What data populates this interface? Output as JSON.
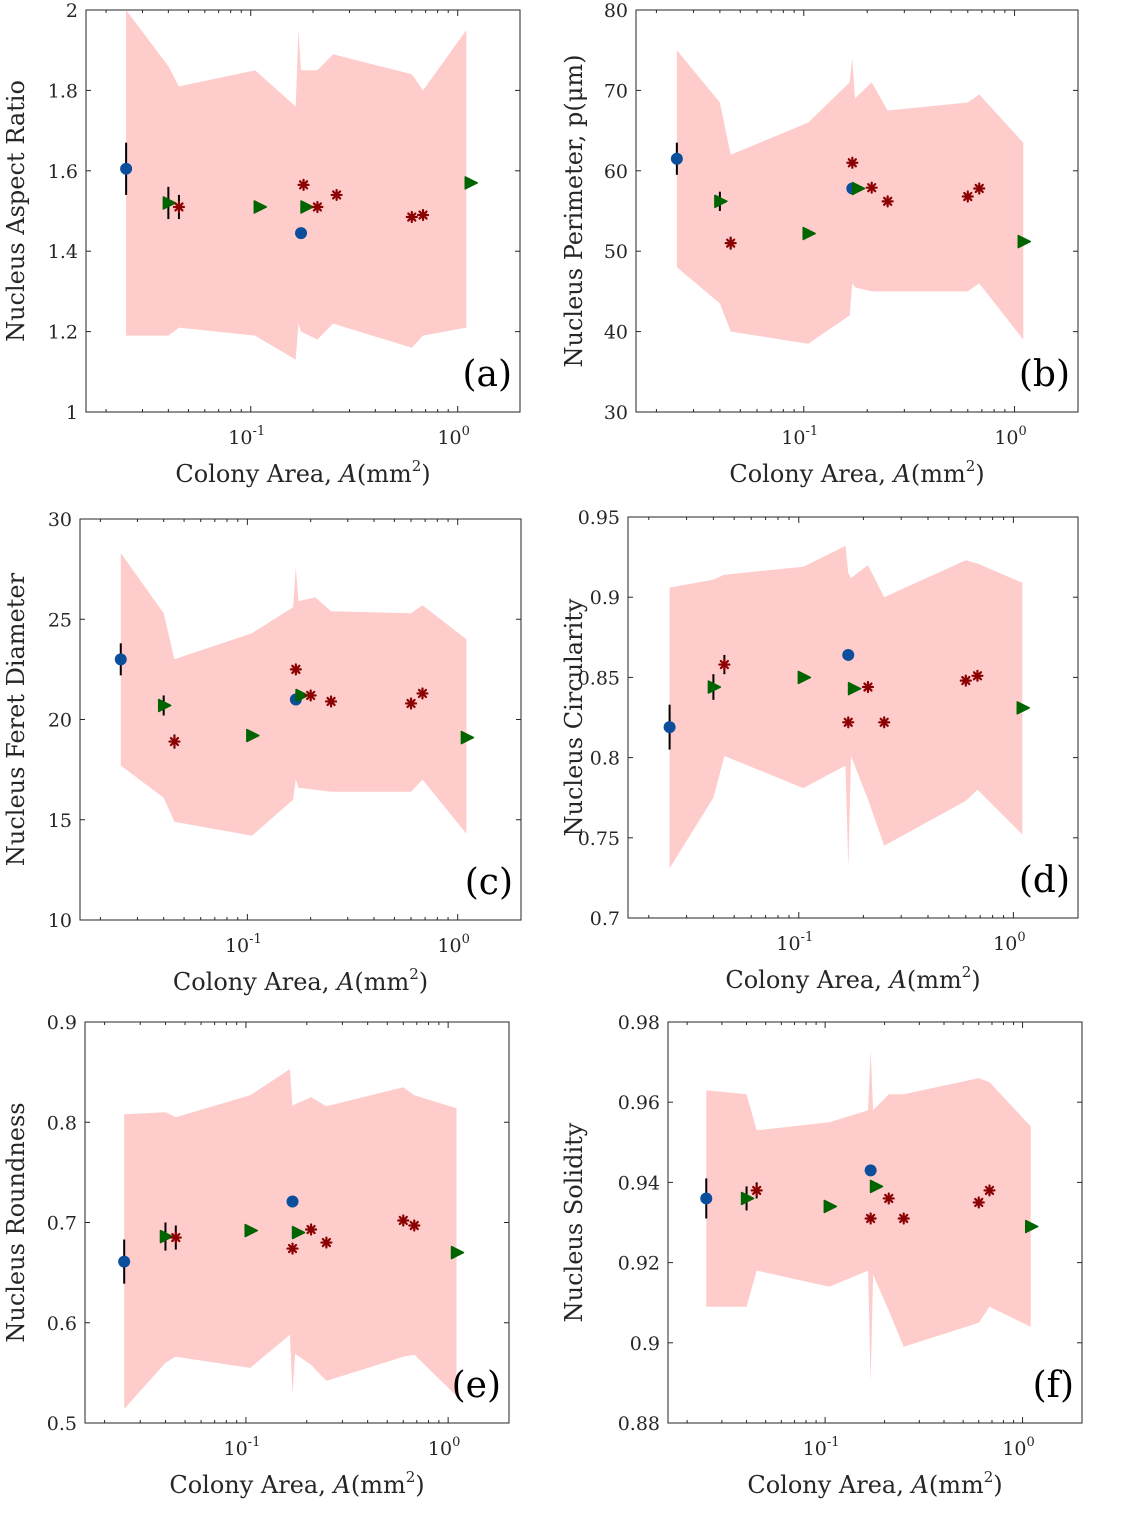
{
  "colors": {
    "band": "#ffcccc",
    "circle": "#0b4f9c",
    "triangle": "#006400",
    "star": "#8b0000",
    "errorbar": "#000000"
  },
  "chart_data": [
    {
      "type": "scatter",
      "panel_label": "(a)",
      "xlabel": {
        "prefix": "Colony Area, ",
        "var": "A",
        "unit": "(mm",
        "sup": "2",
        "end": ")"
      },
      "ylabel": "Nucleus Aspect Ratio",
      "xscale": "log",
      "xlim": [
        0.016,
        2.0
      ],
      "ylim": [
        1,
        2
      ],
      "xticks": [
        {
          "base": "10",
          "exp": "-1",
          "value": 0.1
        },
        {
          "base": "10",
          "exp": "0",
          "value": 1
        }
      ],
      "yticks": [
        "1",
        "1.2",
        "1.4",
        "1.6",
        "1.8",
        "2"
      ],
      "band": {
        "x": [
          0.025,
          0.04,
          0.045,
          0.105,
          0.165,
          0.17,
          0.175,
          0.21,
          0.25,
          0.6,
          0.68,
          1.1
        ],
        "upper": [
          2.0,
          1.86,
          1.81,
          1.85,
          1.76,
          1.95,
          1.85,
          1.85,
          1.89,
          1.84,
          1.8,
          1.95
        ],
        "lower": [
          1.19,
          1.19,
          1.21,
          1.19,
          1.13,
          1.22,
          1.2,
          1.18,
          1.22,
          1.16,
          1.19,
          1.21
        ]
      },
      "series": [
        {
          "marker": "circle",
          "points": [
            {
              "x": 0.025,
              "y": 1.605,
              "err": 0.065
            },
            {
              "x": 0.175,
              "y": 1.445
            }
          ]
        },
        {
          "marker": "triangle",
          "points": [
            {
              "x": 0.04,
              "y": 1.52,
              "err": 0.04
            },
            {
              "x": 0.11,
              "y": 1.51
            },
            {
              "x": 0.185,
              "y": 1.51
            },
            {
              "x": 1.15,
              "y": 1.57
            }
          ]
        },
        {
          "marker": "star",
          "points": [
            {
              "x": 0.045,
              "y": 1.51,
              "err": 0.03
            },
            {
              "x": 0.18,
              "y": 1.565
            },
            {
              "x": 0.21,
              "y": 1.51
            },
            {
              "x": 0.26,
              "y": 1.54
            },
            {
              "x": 0.6,
              "y": 1.485
            },
            {
              "x": 0.68,
              "y": 1.49
            }
          ]
        }
      ]
    },
    {
      "type": "scatter",
      "panel_label": "(b)",
      "xlabel": {
        "prefix": "Colony Area, ",
        "var": "A",
        "unit": "(mm",
        "sup": "2",
        "end": ")"
      },
      "ylabel": "Nucleus Perimeter, p(μm)",
      "xscale": "log",
      "xlim": [
        0.016,
        2.0
      ],
      "ylim": [
        30,
        80
      ],
      "xticks": [
        {
          "base": "10",
          "exp": "-1",
          "value": 0.1
        },
        {
          "base": "10",
          "exp": "0",
          "value": 1
        }
      ],
      "yticks": [
        "30",
        "40",
        "50",
        "60",
        "70",
        "80"
      ],
      "band": {
        "x": [
          0.025,
          0.04,
          0.045,
          0.105,
          0.165,
          0.17,
          0.175,
          0.21,
          0.25,
          0.6,
          0.68,
          1.1
        ],
        "upper": [
          75,
          68.5,
          62,
          66,
          71,
          74,
          69,
          71,
          67.5,
          68.5,
          69.5,
          63.5
        ],
        "lower": [
          48,
          43.5,
          40,
          38.5,
          42,
          46,
          45.5,
          45,
          45,
          45,
          46,
          39
        ]
      },
      "series": [
        {
          "marker": "circle",
          "points": [
            {
              "x": 0.025,
              "y": 61.5,
              "err": 2.0
            },
            {
              "x": 0.17,
              "y": 57.8
            }
          ]
        },
        {
          "marker": "triangle",
          "points": [
            {
              "x": 0.04,
              "y": 56.2,
              "err": 1.2
            },
            {
              "x": 0.105,
              "y": 52.2
            },
            {
              "x": 0.18,
              "y": 57.8
            },
            {
              "x": 1.1,
              "y": 51.2
            }
          ]
        },
        {
          "marker": "star",
          "points": [
            {
              "x": 0.045,
              "y": 51.0,
              "err": 0.8
            },
            {
              "x": 0.17,
              "y": 61.0
            },
            {
              "x": 0.21,
              "y": 57.9
            },
            {
              "x": 0.25,
              "y": 56.2
            },
            {
              "x": 0.6,
              "y": 56.8
            },
            {
              "x": 0.68,
              "y": 57.8
            }
          ]
        }
      ]
    },
    {
      "type": "scatter",
      "panel_label": "(c)",
      "xlabel": {
        "prefix": "Colony Area, ",
        "var": "A",
        "unit": "(mm",
        "sup": "2",
        "end": ")"
      },
      "ylabel": "Nucleus Feret Diameter",
      "xscale": "log",
      "xlim": [
        0.016,
        2.0
      ],
      "ylim": [
        10,
        30
      ],
      "xticks": [
        {
          "base": "10",
          "exp": "-1",
          "value": 0.1
        },
        {
          "base": "10",
          "exp": "0",
          "value": 1
        }
      ],
      "yticks": [
        "10",
        "15",
        "20",
        "25",
        "30"
      ],
      "band": {
        "x": [
          0.025,
          0.04,
          0.045,
          0.105,
          0.165,
          0.17,
          0.175,
          0.21,
          0.25,
          0.6,
          0.68,
          1.1
        ],
        "upper": [
          28.3,
          25.3,
          23.0,
          24.3,
          25.6,
          27.6,
          25.9,
          26.1,
          25.4,
          25.3,
          25.7,
          24.0
        ],
        "lower": [
          17.7,
          16.1,
          14.9,
          14.2,
          16.0,
          17.0,
          16.6,
          16.5,
          16.4,
          16.4,
          17.0,
          14.3
        ]
      },
      "series": [
        {
          "marker": "circle",
          "points": [
            {
              "x": 0.025,
              "y": 23.0,
              "err": 0.8
            },
            {
              "x": 0.17,
              "y": 21.0
            }
          ]
        },
        {
          "marker": "triangle",
          "points": [
            {
              "x": 0.04,
              "y": 20.7,
              "err": 0.5
            },
            {
              "x": 0.105,
              "y": 19.2
            },
            {
              "x": 0.18,
              "y": 21.2
            },
            {
              "x": 1.1,
              "y": 19.1
            }
          ]
        },
        {
          "marker": "star",
          "points": [
            {
              "x": 0.045,
              "y": 18.9,
              "err": 0.35
            },
            {
              "x": 0.17,
              "y": 22.5
            },
            {
              "x": 0.2,
              "y": 21.2
            },
            {
              "x": 0.25,
              "y": 20.9
            },
            {
              "x": 0.6,
              "y": 20.8
            },
            {
              "x": 0.68,
              "y": 21.3
            }
          ]
        }
      ]
    },
    {
      "type": "scatter",
      "panel_label": "(d)",
      "xlabel": {
        "prefix": "Colony Area, ",
        "var": "A",
        "unit": "(mm",
        "sup": "2",
        "end": ")"
      },
      "ylabel": "Nucleus Circularity",
      "xscale": "log",
      "xlim": [
        0.016,
        2.0
      ],
      "ylim": [
        0.7,
        0.95
      ],
      "xticks": [
        {
          "base": "10",
          "exp": "-1",
          "value": 0.1
        },
        {
          "base": "10",
          "exp": "0",
          "value": 1
        }
      ],
      "yticks": [
        "0.7",
        "0.75",
        "0.8",
        "0.85",
        "0.9",
        "0.95"
      ],
      "band": {
        "x": [
          0.025,
          0.04,
          0.045,
          0.105,
          0.165,
          0.17,
          0.175,
          0.21,
          0.25,
          0.6,
          0.68,
          1.1
        ],
        "upper": [
          0.906,
          0.911,
          0.914,
          0.919,
          0.932,
          0.915,
          0.912,
          0.92,
          0.9,
          0.923,
          0.921,
          0.909
        ],
        "lower": [
          0.731,
          0.775,
          0.801,
          0.781,
          0.795,
          0.731,
          0.801,
          0.774,
          0.745,
          0.773,
          0.78,
          0.752
        ]
      },
      "series": [
        {
          "marker": "circle",
          "points": [
            {
              "x": 0.025,
              "y": 0.819,
              "err": 0.014
            },
            {
              "x": 0.17,
              "y": 0.864
            }
          ]
        },
        {
          "marker": "triangle",
          "points": [
            {
              "x": 0.04,
              "y": 0.844,
              "err": 0.008
            },
            {
              "x": 0.105,
              "y": 0.85
            },
            {
              "x": 0.18,
              "y": 0.843
            },
            {
              "x": 1.1,
              "y": 0.831
            }
          ]
        },
        {
          "marker": "star",
          "points": [
            {
              "x": 0.045,
              "y": 0.858,
              "err": 0.006
            },
            {
              "x": 0.17,
              "y": 0.822
            },
            {
              "x": 0.21,
              "y": 0.844
            },
            {
              "x": 0.25,
              "y": 0.822
            },
            {
              "x": 0.6,
              "y": 0.848
            },
            {
              "x": 0.68,
              "y": 0.851
            }
          ]
        }
      ]
    },
    {
      "type": "scatter",
      "panel_label": "(e)",
      "xlabel": {
        "prefix": "Colony Area, ",
        "var": "A",
        "unit": "(mm",
        "sup": "2",
        "end": ")"
      },
      "ylabel": "Nucleus Roundness",
      "xscale": "log",
      "xlim": [
        0.016,
        2.0
      ],
      "ylim": [
        0.5,
        0.9
      ],
      "xticks": [
        {
          "base": "10",
          "exp": "-1",
          "value": 0.1
        },
        {
          "base": "10",
          "exp": "0",
          "value": 1
        }
      ],
      "yticks": [
        "0.5",
        "0.6",
        "0.7",
        "0.8",
        "0.9"
      ],
      "band": {
        "x": [
          0.025,
          0.04,
          0.045,
          0.105,
          0.165,
          0.17,
          0.175,
          0.21,
          0.25,
          0.6,
          0.68,
          1.1
        ],
        "upper": [
          0.808,
          0.81,
          0.805,
          0.827,
          0.853,
          0.816,
          0.818,
          0.825,
          0.816,
          0.835,
          0.827,
          0.814
        ],
        "lower": [
          0.514,
          0.56,
          0.566,
          0.555,
          0.588,
          0.529,
          0.569,
          0.558,
          0.542,
          0.566,
          0.568,
          0.527
        ]
      },
      "series": [
        {
          "marker": "circle",
          "points": [
            {
              "x": 0.025,
              "y": 0.661,
              "err": 0.022
            },
            {
              "x": 0.17,
              "y": 0.721
            }
          ]
        },
        {
          "marker": "triangle",
          "points": [
            {
              "x": 0.04,
              "y": 0.686,
              "err": 0.014
            },
            {
              "x": 0.105,
              "y": 0.692
            },
            {
              "x": 0.18,
              "y": 0.69
            },
            {
              "x": 1.1,
              "y": 0.67
            }
          ]
        },
        {
          "marker": "star",
          "points": [
            {
              "x": 0.045,
              "y": 0.685,
              "err": 0.012
            },
            {
              "x": 0.17,
              "y": 0.674
            },
            {
              "x": 0.21,
              "y": 0.693
            },
            {
              "x": 0.25,
              "y": 0.68
            },
            {
              "x": 0.6,
              "y": 0.702
            },
            {
              "x": 0.68,
              "y": 0.697
            }
          ]
        }
      ]
    },
    {
      "type": "scatter",
      "panel_label": "(f)",
      "xlabel": {
        "prefix": "Colony Area, ",
        "var": "A",
        "unit": "(mm",
        "sup": "2",
        "end": ")"
      },
      "ylabel": "Nucleus Solidity",
      "xscale": "log",
      "xlim": [
        0.016,
        2.0
      ],
      "ylim": [
        0.88,
        0.98
      ],
      "xticks": [
        {
          "base": "10",
          "exp": "-1",
          "value": 0.1
        },
        {
          "base": "10",
          "exp": "0",
          "value": 1
        }
      ],
      "yticks": [
        "0.88",
        "0.9",
        "0.92",
        "0.94",
        "0.96",
        "0.98"
      ],
      "band": {
        "x": [
          0.025,
          0.04,
          0.045,
          0.105,
          0.165,
          0.17,
          0.175,
          0.21,
          0.25,
          0.6,
          0.68,
          1.1
        ],
        "upper": [
          0.963,
          0.962,
          0.953,
          0.955,
          0.958,
          0.973,
          0.958,
          0.962,
          0.962,
          0.966,
          0.965,
          0.954
        ],
        "lower": [
          0.909,
          0.909,
          0.918,
          0.914,
          0.918,
          0.89,
          0.917,
          0.908,
          0.899,
          0.905,
          0.909,
          0.904
        ]
      },
      "series": [
        {
          "marker": "circle",
          "points": [
            {
              "x": 0.025,
              "y": 0.936,
              "err": 0.005
            },
            {
              "x": 0.17,
              "y": 0.943
            }
          ]
        },
        {
          "marker": "triangle",
          "points": [
            {
              "x": 0.04,
              "y": 0.936,
              "err": 0.003
            },
            {
              "x": 0.105,
              "y": 0.934
            },
            {
              "x": 0.18,
              "y": 0.939
            },
            {
              "x": 1.1,
              "y": 0.929
            }
          ]
        },
        {
          "marker": "star",
          "points": [
            {
              "x": 0.045,
              "y": 0.938,
              "err": 0.002
            },
            {
              "x": 0.17,
              "y": 0.931
            },
            {
              "x": 0.21,
              "y": 0.936
            },
            {
              "x": 0.25,
              "y": 0.931
            },
            {
              "x": 0.6,
              "y": 0.935
            },
            {
              "x": 0.68,
              "y": 0.938
            }
          ]
        }
      ]
    }
  ]
}
